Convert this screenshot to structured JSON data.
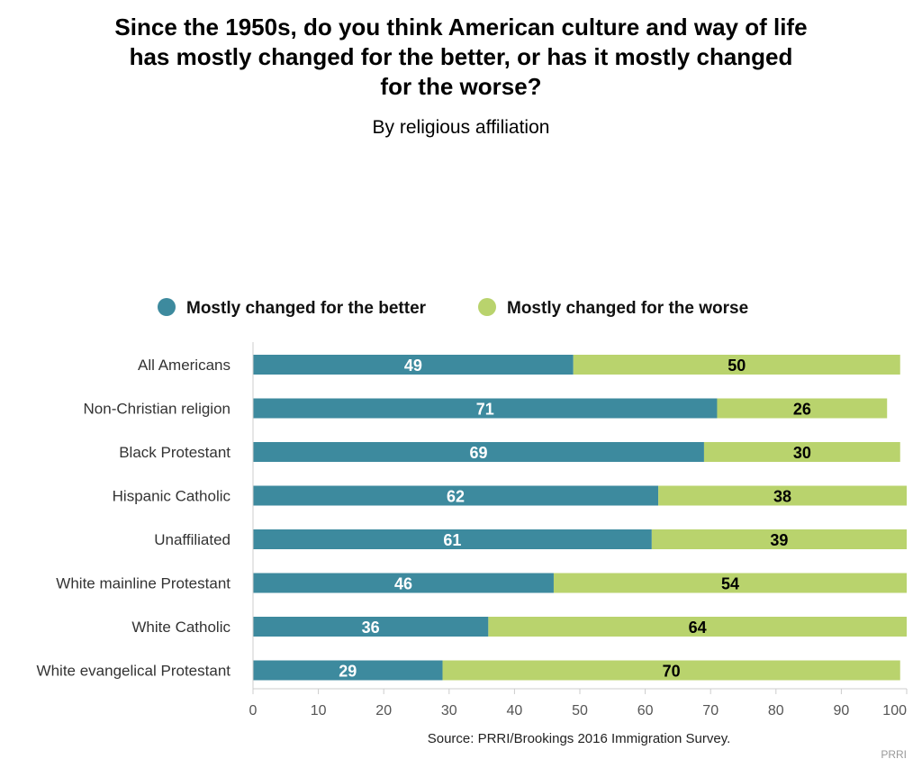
{
  "chart_data": {
    "type": "bar",
    "orientation": "horizontal",
    "stacked": true,
    "title": "Since the 1950s, do you think American culture and way of life has mostly changed for the better, or has it mostly changed for the worse?",
    "subtitle": "By religious affiliation",
    "categories": [
      "All Americans",
      "Non-Christian religion",
      "Black Protestant",
      "Hispanic Catholic",
      "Unaffiliated",
      "White mainline Protestant",
      "White Catholic",
      "White evangelical Protestant"
    ],
    "series": [
      {
        "name": "Mostly changed for the better",
        "color": "#3d8a9e",
        "label_color": "#ffffff",
        "values": [
          49,
          71,
          69,
          62,
          61,
          46,
          36,
          29
        ]
      },
      {
        "name": "Mostly changed for the worse",
        "color": "#b9d36d",
        "label_color": "#000000",
        "values": [
          50,
          26,
          30,
          38,
          39,
          54,
          64,
          70
        ]
      }
    ],
    "xlim": [
      0,
      100
    ],
    "xticks": [
      0,
      10,
      20,
      30,
      40,
      50,
      60,
      70,
      80,
      90,
      100
    ],
    "xlabel": "",
    "ylabel": "",
    "legend_position": "top",
    "grid": false,
    "source": "Source: PRRI/Brookings 2016 Immigration Survey.",
    "brand": "PRRI"
  }
}
